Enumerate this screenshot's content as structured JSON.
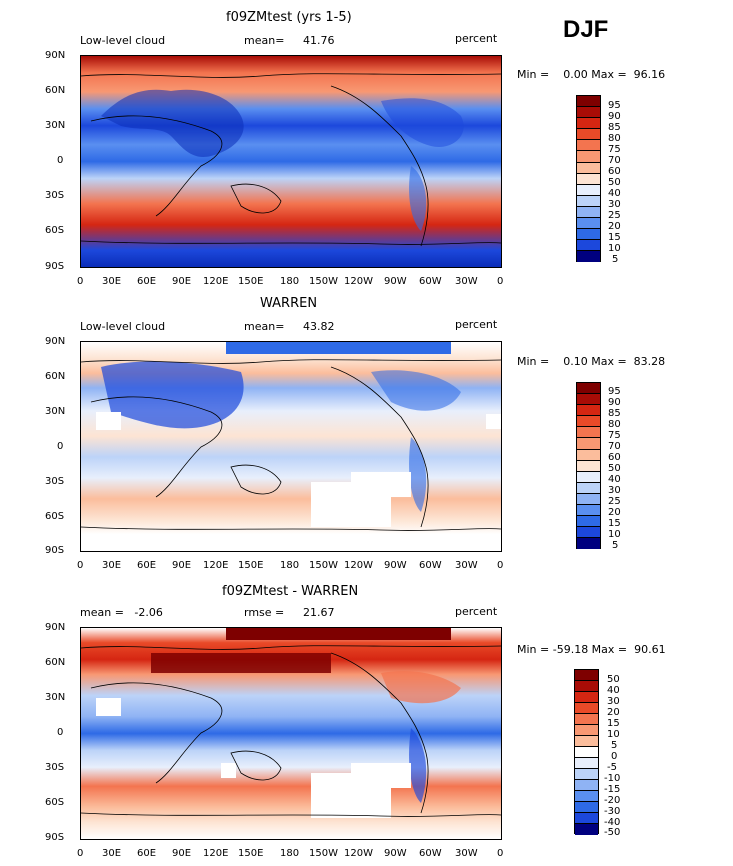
{
  "season": "DJF",
  "panels": [
    {
      "title": "f09ZMtest (yrs 1-5)",
      "left_label": "Low-level cloud",
      "stat_label": "mean=",
      "stat_value": "41.76",
      "units": "percent",
      "range": "Min =    0.00 Max =  96.16",
      "cbar": [
        "95",
        "90",
        "85",
        "80",
        "75",
        "70",
        "60",
        "50",
        "40",
        "30",
        "25",
        "20",
        "15",
        "10",
        "5"
      ]
    },
    {
      "title": "WARREN",
      "left_label": "Low-level cloud",
      "stat_label": "mean=",
      "stat_value": "43.82",
      "units": "percent",
      "range": "Min =    0.10 Max =  83.28",
      "cbar": [
        "95",
        "90",
        "85",
        "80",
        "75",
        "70",
        "60",
        "50",
        "40",
        "30",
        "25",
        "20",
        "15",
        "10",
        "5"
      ]
    },
    {
      "title": "f09ZMtest - WARREN",
      "left_label": "mean =   -2.06",
      "stat_label": "rmse =",
      "stat_value": "21.67",
      "units": "percent",
      "range": "Min = -59.18 Max =  90.61",
      "cbar": [
        "50",
        "40",
        "30",
        "20",
        "15",
        "10",
        "5",
        "0",
        "-5",
        "-10",
        "-15",
        "-20",
        "-30",
        "-40",
        "-50"
      ]
    }
  ],
  "lat_ticks": [
    "90N",
    "60N",
    "30N",
    "0",
    "30S",
    "60S",
    "90S"
  ],
  "lon_ticks": [
    "0",
    "30E",
    "60E",
    "90E",
    "120E",
    "150E",
    "180",
    "150W",
    "120W",
    "90W",
    "60W",
    "30W",
    "0"
  ],
  "colors": {
    "abs_scale": [
      "#00007f",
      "#0b2db8",
      "#1c48dc",
      "#2e6ae6",
      "#5a8ff0",
      "#8fb3f4",
      "#bcd3f8",
      "#e8effc",
      "#fde4d3",
      "#fbbd9c",
      "#f89873",
      "#f3744f",
      "#e94a28",
      "#d52612",
      "#a80c06",
      "#7e0000"
    ],
    "diff_scale": [
      "#00007f",
      "#0b2db8",
      "#1c48dc",
      "#2e6ae6",
      "#5a8ff0",
      "#8fb3f4",
      "#bcd3f8",
      "#e8effc",
      "#fde4d3",
      "#fbbd9c",
      "#f89873",
      "#f3744f",
      "#e94a28",
      "#d52612",
      "#a80c06",
      "#7e0000"
    ]
  }
}
